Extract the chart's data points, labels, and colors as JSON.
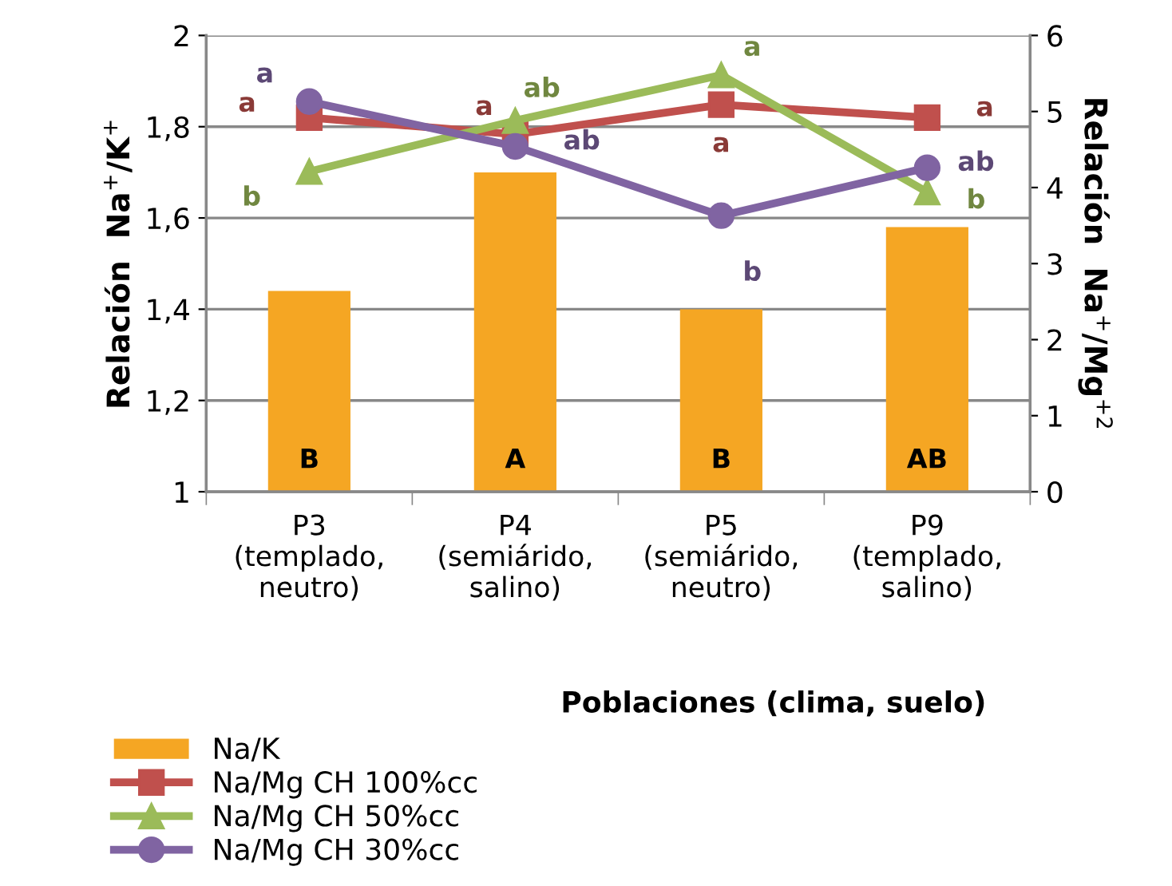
{
  "chart_data": {
    "type": "bar",
    "xlabel": "Poblaciones (clima, suelo)",
    "ylabel": "Relación  Na$^{+}$/K$^{+}$",
    "y2label": "Relación  Na$^{+}$/Mg$^{+2}$",
    "categories": [
      "P3\n(templado,\nneutro)",
      "P4\n(semiárido,\nsalino)",
      "P5\n(semiárido,\nneutro)",
      "P9\n(templado,\nsalino)"
    ],
    "series": [
      {
        "name": "Na/K",
        "color": "#f5a623",
        "values": [
          1.44,
          1.7,
          1.4,
          1.58
        ],
        "value_labels": [
          "B",
          "A",
          "B",
          "AB"
        ]
      },
      {
        "name": "Na/Mg CH 100%cc",
        "type": "line",
        "axis": "y2",
        "marker": "square",
        "color": "#c0504d",
        "values": [
          4.92,
          4.7,
          5.09,
          4.92
        ],
        "value_labels": [
          "a",
          "a",
          "a",
          "a"
        ]
      },
      {
        "name": "Na/Mg CH 50%cc",
        "type": "line",
        "axis": "y2",
        "marker": "triangle",
        "color": "#9bbb59",
        "values": [
          4.21,
          4.88,
          5.48,
          3.94
        ],
        "value_labels": [
          "b",
          "ab",
          "a",
          "b"
        ]
      },
      {
        "name": "Na/Mg CH 30%cc",
        "type": "line",
        "axis": "y2",
        "marker": "circle",
        "color": "#8064a2",
        "values": [
          5.13,
          4.54,
          3.63,
          4.26
        ],
        "value_labels": [
          "a",
          "ab",
          "b",
          "ab"
        ]
      }
    ],
    "ylim": [
      1,
      2
    ],
    "yticks": [
      {
        "value": 1,
        "label": "1"
      },
      {
        "value": 1.2,
        "label": "1,2"
      },
      {
        "value": 1.4,
        "label": "1,4"
      },
      {
        "value": 1.6,
        "label": "1,6"
      },
      {
        "value": 1.8,
        "label": "1,8"
      },
      {
        "value": 2,
        "label": "2"
      }
    ],
    "y2lim": [
      0,
      6
    ],
    "y2ticks": [
      0,
      1,
      2,
      3,
      4,
      5,
      6
    ],
    "grid": "y",
    "legend": "bottom left",
    "line_style": "solid"
  }
}
